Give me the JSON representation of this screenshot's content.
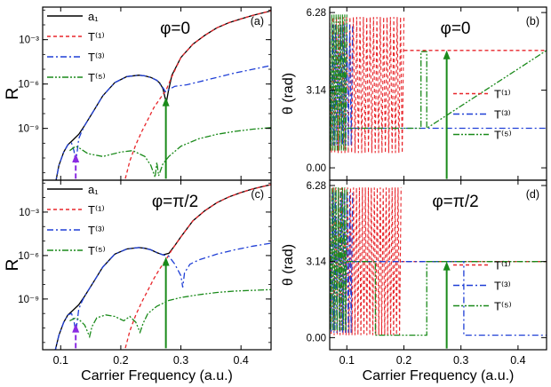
{
  "colors": {
    "a1": "#000000",
    "T1": "#e8262b",
    "T3": "#1f3fd6",
    "T5": "#1a8a1a",
    "arrow_green": "#1a8a1a",
    "arrow_purple": "#8a2be2"
  },
  "chart_data": [
    {
      "type": "line",
      "panel": "(a)",
      "title": "φ=0",
      "xlabel": "",
      "ylabel": "R",
      "yscale": "log",
      "xlim": [
        0.07,
        0.45
      ],
      "ylim_log10": [
        -12.5,
        -0.8
      ],
      "xticks": [],
      "yticks": [
        {
          "v": -3,
          "label": "10⁻³"
        },
        {
          "v": -6,
          "label": "10⁻⁶"
        },
        {
          "v": -9,
          "label": "10⁻⁹"
        }
      ],
      "legend": {
        "placement": "top-left",
        "entries": [
          "a₁",
          "T⁽¹⁾",
          "T⁽³⁾",
          "T⁽⁵⁾"
        ]
      },
      "series": [
        {
          "name": "a₁",
          "color": "#000000",
          "dash": "",
          "x": [
            0.09,
            0.097,
            0.105,
            0.112,
            0.12,
            0.13,
            0.14,
            0.155,
            0.17,
            0.19,
            0.21,
            0.23,
            0.24,
            0.25,
            0.26,
            0.265,
            0.27,
            0.274,
            0.276,
            0.279,
            0.285,
            0.3,
            0.32,
            0.34,
            0.36,
            0.38,
            0.4,
            0.42,
            0.45
          ],
          "y": [
            -13,
            -11.5,
            -10.6,
            -10.1,
            -9.8,
            -9.4,
            -8.8,
            -7.8,
            -6.8,
            -5.9,
            -5.5,
            -5.4,
            -5.45,
            -5.55,
            -5.75,
            -5.95,
            -6.3,
            -7,
            -7.2,
            -6.5,
            -5.4,
            -4.2,
            -3.3,
            -2.7,
            -2.2,
            -1.85,
            -1.6,
            -1.35,
            -1.05
          ]
        },
        {
          "name": "T⁽¹⁾",
          "color": "#e8262b",
          "dash": "4,3",
          "x": [
            0.205,
            0.215,
            0.225,
            0.235,
            0.245,
            0.255,
            0.265,
            0.272,
            0.275,
            0.285,
            0.3,
            0.32,
            0.34,
            0.36,
            0.38,
            0.4,
            0.42,
            0.45
          ],
          "y": [
            -12.8,
            -11.2,
            -10.1,
            -9.2,
            -8.4,
            -7.6,
            -7,
            -6.6,
            -6.45,
            -5.5,
            -4.2,
            -3.3,
            -2.7,
            -2.2,
            -1.85,
            -1.6,
            -1.35,
            -1.05
          ]
        },
        {
          "name": "T⁽³⁾",
          "color": "#1f3fd6",
          "dash": "7,3,2,3",
          "x": [
            0.09,
            0.097,
            0.105,
            0.112,
            0.118,
            0.122,
            0.125,
            0.128,
            0.13,
            0.135,
            0.14,
            0.155,
            0.17,
            0.19,
            0.21,
            0.23,
            0.24,
            0.25,
            0.26,
            0.27,
            0.274,
            0.276,
            0.279,
            0.29,
            0.31,
            0.33,
            0.36,
            0.39,
            0.42,
            0.45
          ],
          "y": [
            -13,
            -11.5,
            -10.6,
            -10.1,
            -10,
            -10.5,
            -11.3,
            -10.4,
            -9.7,
            -9.2,
            -8.8,
            -7.8,
            -6.8,
            -5.9,
            -5.5,
            -5.4,
            -5.45,
            -5.55,
            -5.75,
            -6.25,
            -6.5,
            -6.55,
            -6.4,
            -6.15,
            -6.05,
            -5.85,
            -5.55,
            -5.25,
            -5,
            -4.75
          ]
        },
        {
          "name": "T⁽⁵⁾",
          "color": "#1a8a1a",
          "dash": "7,2,2,2,2,2",
          "x": [
            0.115,
            0.125,
            0.13,
            0.145,
            0.17,
            0.2,
            0.22,
            0.24,
            0.25,
            0.257,
            0.26,
            0.263,
            0.27,
            0.28,
            0.3,
            0.33,
            0.36,
            0.39,
            0.42,
            0.45
          ],
          "y": [
            -10.5,
            -10.2,
            -10.3,
            -10.7,
            -10.9,
            -10.6,
            -10.5,
            -10.9,
            -11.5,
            -12.3,
            -11.3,
            -12.2,
            -11.4,
            -10.9,
            -10.2,
            -9.7,
            -9.4,
            -9.2,
            -9.05,
            -8.95
          ]
        }
      ],
      "arrows": [
        {
          "x": 0.275,
          "from": -12.4,
          "to": -6.9,
          "color": "#1a8a1a",
          "style": "solid"
        },
        {
          "x": 0.125,
          "from": -12.4,
          "to": -10.7,
          "color": "#8a2be2",
          "style": "dashed"
        }
      ]
    },
    {
      "type": "line",
      "panel": "(b)",
      "title": "φ=0",
      "xlabel": "",
      "ylabel": "θ (rad)",
      "xlim": [
        0.07,
        0.45
      ],
      "ylim": [
        -0.5,
        6.5
      ],
      "xticks": [],
      "yticks": [
        {
          "v": 0,
          "label": "0.00"
        },
        {
          "v": 3.14,
          "label": "3.14"
        },
        {
          "v": 6.28,
          "label": "6.28"
        }
      ],
      "legend": {
        "placement": "center-right",
        "entries": [
          "T⁽¹⁾",
          "T⁽³⁾",
          "T⁽⁵⁾"
        ]
      },
      "series": [
        {
          "name": "T⁽¹⁾",
          "color": "#e8262b",
          "dash": "4,3",
          "osc": {
            "x0": 0.07,
            "x1": 0.2,
            "periods": 22,
            "lo": 0.6,
            "hi": 6.1
          },
          "x": [
            0.2,
            0.45
          ],
          "y": [
            4.75,
            4.75
          ]
        },
        {
          "name": "T⁽³⁾",
          "color": "#1f3fd6",
          "dash": "7,3,2,3",
          "osc": {
            "x0": 0.07,
            "x1": 0.11,
            "periods": 8,
            "lo": 0.9,
            "hi": 5.8
          },
          "x": [
            0.11,
            0.45
          ],
          "y": [
            1.6,
            1.6
          ]
        },
        {
          "name": "T⁽⁵⁾",
          "color": "#1a8a1a",
          "dash": "7,2,2,2,2,2",
          "osc": {
            "x0": 0.07,
            "x1": 0.1,
            "periods": 8,
            "lo": 0.7,
            "hi": 6.2
          },
          "x": [
            0.1,
            0.23,
            0.23,
            0.24,
            0.24,
            0.45
          ],
          "y": [
            1.6,
            1.6,
            4.7,
            4.7,
            1.6,
            4.75
          ]
        }
      ],
      "arrows": [
        {
          "x": 0.275,
          "from": -0.45,
          "to": 4.75,
          "color": "#1a8a1a",
          "style": "solid"
        }
      ]
    },
    {
      "type": "line",
      "panel": "(c)",
      "title": "φ=π/2",
      "xlabel": "Carrier Frequency (a.u.)",
      "ylabel": "R",
      "yscale": "log",
      "xlim": [
        0.07,
        0.45
      ],
      "ylim_log10": [
        -12.5,
        -0.8
      ],
      "xticks": [
        {
          "v": 0.1,
          "label": "0.1"
        },
        {
          "v": 0.2,
          "label": "0.2"
        },
        {
          "v": 0.3,
          "label": "0.3"
        },
        {
          "v": 0.4,
          "label": "0.4"
        }
      ],
      "yticks": [
        {
          "v": -3,
          "label": "10⁻³"
        },
        {
          "v": -6,
          "label": "10⁻⁶"
        },
        {
          "v": -9,
          "label": "10⁻⁹"
        }
      ],
      "legend": {
        "placement": "top-left",
        "entries": [
          "a₁",
          "T⁽¹⁾",
          "T⁽³⁾",
          "T⁽⁵⁾"
        ]
      },
      "series": [
        {
          "name": "a₁",
          "color": "#000000",
          "dash": "",
          "x": [
            0.09,
            0.097,
            0.105,
            0.112,
            0.12,
            0.13,
            0.14,
            0.155,
            0.17,
            0.19,
            0.21,
            0.23,
            0.24,
            0.25,
            0.26,
            0.27,
            0.28,
            0.29,
            0.3,
            0.32,
            0.34,
            0.36,
            0.38,
            0.4,
            0.42,
            0.45
          ],
          "y": [
            -12.7,
            -11.5,
            -10.6,
            -10.1,
            -9.8,
            -9.4,
            -8.8,
            -7.8,
            -6.8,
            -5.9,
            -5.55,
            -5.45,
            -5.5,
            -5.6,
            -5.8,
            -5.95,
            -5.85,
            -5.3,
            -4.7,
            -3.6,
            -2.9,
            -2.35,
            -1.95,
            -1.65,
            -1.4,
            -1.1
          ]
        },
        {
          "name": "T⁽¹⁾",
          "color": "#e8262b",
          "dash": "4,3",
          "x": [
            0.205,
            0.215,
            0.225,
            0.235,
            0.245,
            0.255,
            0.265,
            0.275,
            0.285,
            0.3,
            0.32,
            0.34,
            0.36,
            0.38,
            0.4,
            0.42,
            0.45
          ],
          "y": [
            -12.8,
            -11.2,
            -10.1,
            -9.2,
            -8.4,
            -7.6,
            -6.9,
            -6.3,
            -5.6,
            -4.7,
            -3.6,
            -2.9,
            -2.35,
            -1.95,
            -1.65,
            -1.4,
            -1.1
          ]
        },
        {
          "name": "T⁽³⁾",
          "color": "#1f3fd6",
          "dash": "7,3,2,3",
          "x": [
            0.09,
            0.097,
            0.105,
            0.112,
            0.118,
            0.122,
            0.125,
            0.128,
            0.13,
            0.135,
            0.14,
            0.155,
            0.17,
            0.19,
            0.21,
            0.23,
            0.24,
            0.25,
            0.26,
            0.27,
            0.28,
            0.29,
            0.3,
            0.303,
            0.306,
            0.315,
            0.33,
            0.36,
            0.39,
            0.42,
            0.45
          ],
          "y": [
            -12.7,
            -11.5,
            -10.6,
            -10.1,
            -10,
            -10.5,
            -11.3,
            -10.4,
            -9.7,
            -9.2,
            -8.8,
            -7.8,
            -6.8,
            -5.9,
            -5.55,
            -5.45,
            -5.5,
            -5.6,
            -5.8,
            -5.95,
            -6.05,
            -6.6,
            -7.4,
            -8.2,
            -7.2,
            -6.6,
            -6.3,
            -5.9,
            -5.6,
            -5.35,
            -5.15
          ]
        },
        {
          "name": "T⁽⁵⁾",
          "color": "#1a8a1a",
          "dash": "7,2,2,2,2,2",
          "x": [
            0.115,
            0.125,
            0.13,
            0.14,
            0.148,
            0.152,
            0.16,
            0.175,
            0.19,
            0.205,
            0.215,
            0.225,
            0.232,
            0.237,
            0.245,
            0.26,
            0.28,
            0.3,
            0.33,
            0.36,
            0.39,
            0.42,
            0.45
          ],
          "y": [
            -10.5,
            -10.3,
            -10.4,
            -10.8,
            -11.6,
            -10.9,
            -10.3,
            -10.1,
            -10.2,
            -10.5,
            -10.2,
            -10.6,
            -11.3,
            -10.7,
            -10,
            -9.5,
            -9.1,
            -8.9,
            -8.7,
            -8.55,
            -8.45,
            -8.4,
            -8.35
          ]
        }
      ],
      "arrows": [
        {
          "x": 0.275,
          "from": -12.4,
          "to": -6.1,
          "color": "#1a8a1a",
          "style": "solid"
        },
        {
          "x": 0.125,
          "from": -12.4,
          "to": -10.7,
          "color": "#8a2be2",
          "style": "dashed"
        }
      ]
    },
    {
      "type": "line",
      "panel": "(d)",
      "title": "φ=π/2",
      "xlabel": "Carrier Frequency (a.u.)",
      "ylabel": "θ (rad)",
      "xlim": [
        0.07,
        0.45
      ],
      "ylim": [
        -0.5,
        6.5
      ],
      "xticks": [
        {
          "v": 0.1,
          "label": "0.1"
        },
        {
          "v": 0.2,
          "label": "0.2"
        },
        {
          "v": 0.3,
          "label": "0.3"
        },
        {
          "v": 0.4,
          "label": "0.4"
        }
      ],
      "yticks": [
        {
          "v": 0,
          "label": "0.00"
        },
        {
          "v": 3.14,
          "label": "3.14"
        },
        {
          "v": 6.28,
          "label": "6.28"
        }
      ],
      "legend": {
        "placement": "center-right",
        "entries": [
          "T⁽¹⁾",
          "T⁽³⁾",
          "T⁽⁵⁾"
        ]
      },
      "series": [
        {
          "name": "T⁽¹⁾",
          "color": "#e8262b",
          "dash": "4,3",
          "osc": {
            "x0": 0.07,
            "x1": 0.195,
            "periods": 24,
            "lo": 0.1,
            "hi": 6.2
          },
          "x": [
            0.195,
            0.45
          ],
          "y": [
            3.14,
            3.14
          ]
        },
        {
          "name": "T⁽³⁾",
          "color": "#1f3fd6",
          "dash": "7,3,2,3",
          "osc": {
            "x0": 0.07,
            "x1": 0.11,
            "periods": 8,
            "lo": 0.2,
            "hi": 6.0
          },
          "x": [
            0.11,
            0.305,
            0.305,
            0.45
          ],
          "y": [
            3.14,
            3.14,
            0.1,
            0.1
          ]
        },
        {
          "name": "T⁽⁵⁾",
          "color": "#1a8a1a",
          "dash": "7,2,2,2,2,2",
          "osc": {
            "x0": 0.07,
            "x1": 0.1,
            "periods": 8,
            "lo": 0.3,
            "hi": 6.2
          },
          "x": [
            0.1,
            0.15,
            0.15,
            0.24,
            0.24,
            0.45
          ],
          "y": [
            3.14,
            3.14,
            0.1,
            0.1,
            3.14,
            3.14
          ]
        }
      ],
      "arrows": [
        {
          "x": 0.275,
          "from": -0.45,
          "to": 3.14,
          "color": "#1a8a1a",
          "style": "solid"
        }
      ]
    }
  ]
}
